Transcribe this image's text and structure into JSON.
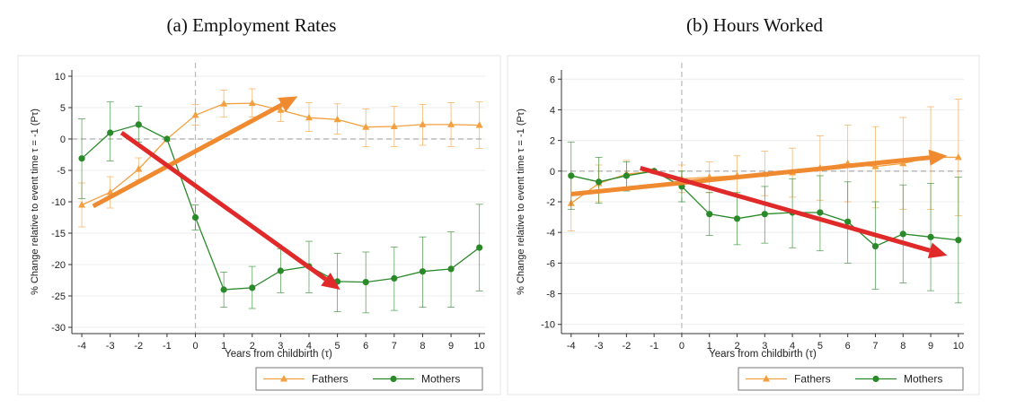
{
  "panels": [
    {
      "title": "(a) Employment Rates"
    },
    {
      "title": "(b) Hours Worked"
    }
  ],
  "chart_data": [
    {
      "type": "line",
      "title": "(a) Employment Rates",
      "xlabel": "Years from childbirth (τ)",
      "ylabel": "% Change relative to event time τ = -1 (Pτ)",
      "x": [
        -4,
        -3,
        -2,
        -1,
        0,
        1,
        2,
        3,
        4,
        5,
        6,
        7,
        8,
        9,
        10
      ],
      "xlim": [
        -4.35,
        10.2
      ],
      "ylim": [
        -31,
        11
      ],
      "yticks": [
        10,
        5,
        0,
        -5,
        -10,
        -15,
        -20,
        -25,
        -30
      ],
      "grid": true,
      "legend_position": "bottom-right",
      "series": [
        {
          "name": "Fathers",
          "color": "#f4a040",
          "marker": "triangle",
          "values": [
            -10.5,
            -8.5,
            -4.8,
            0,
            3.8,
            5.6,
            5.7,
            4.6,
            3.4,
            3.1,
            1.9,
            2.0,
            2.3,
            2.3,
            2.2
          ],
          "ci_low": [
            -14,
            -11,
            -6.5,
            0,
            2.2,
            3.5,
            3.5,
            2.8,
            1.2,
            0.8,
            -1.2,
            -1.2,
            -1.0,
            -1.2,
            -1.5
          ],
          "ci_high": [
            -7,
            -6,
            -3,
            0,
            5.5,
            7.8,
            8.0,
            6.5,
            5.8,
            5.6,
            4.8,
            5.2,
            5.5,
            5.8,
            5.9
          ]
        },
        {
          "name": "Mothers",
          "color": "#2a8a2a",
          "marker": "circle",
          "values": [
            -3.1,
            1.0,
            2.3,
            0,
            -12.5,
            -24.0,
            -23.7,
            -21.0,
            -20.3,
            -22.7,
            -22.8,
            -22.2,
            -21.1,
            -20.7,
            -17.3
          ],
          "ci_low": [
            -9.5,
            -3.5,
            -0.5,
            0,
            -14.5,
            -26.8,
            -27.0,
            -24.5,
            -24.5,
            -27.5,
            -27.7,
            -27.3,
            -26.8,
            -26.8,
            -24.2
          ],
          "ci_high": [
            3.2,
            5.9,
            5.2,
            0,
            -10.5,
            -21.2,
            -20.3,
            -17.5,
            -16.3,
            -18.2,
            -18.0,
            -17.2,
            -15.6,
            -14.8,
            -10.4
          ]
        }
      ],
      "arrows": [
        {
          "color": "#f08a30",
          "from": [
            -3.6,
            -10.7
          ],
          "to": [
            3.6,
            6.8
          ]
        },
        {
          "color": "#e02a2a",
          "from": [
            -2.6,
            1.0
          ],
          "to": [
            5.1,
            -24.0
          ]
        }
      ]
    },
    {
      "type": "line",
      "title": "(b) Hours Worked",
      "xlabel": "Years from childbirth (τ)",
      "ylabel": "% Change relative to event time τ = -1 (Pτ)",
      "x": [
        -4,
        -3,
        -2,
        -1,
        0,
        1,
        2,
        3,
        4,
        5,
        6,
        7,
        8,
        9,
        10
      ],
      "xlim": [
        -4.35,
        10.2
      ],
      "ylim": [
        -10.6,
        6.6
      ],
      "yticks": [
        6,
        4,
        2,
        0,
        -2,
        -4,
        -6,
        -8,
        -10
      ],
      "grid": true,
      "legend_position": "bottom-right",
      "series": [
        {
          "name": "Fathers",
          "color": "#f4a040",
          "marker": "triangle",
          "values": [
            -2.1,
            -0.8,
            -0.2,
            0,
            -0.5,
            -0.4,
            -0.3,
            -0.2,
            -0.1,
            0.2,
            0.5,
            0.3,
            0.5,
            0.9,
            0.9
          ],
          "ci_low": [
            -3.9,
            -2.0,
            -1.1,
            0,
            -1.4,
            -1.4,
            -1.6,
            -1.6,
            -1.7,
            -1.9,
            -2.0,
            -2.4,
            -2.5,
            -2.5,
            -2.9
          ],
          "ci_high": [
            -0.3,
            0.4,
            0.7,
            0,
            0.4,
            0.6,
            1.0,
            1.3,
            1.5,
            2.3,
            3.0,
            2.9,
            3.5,
            4.2,
            4.7
          ]
        },
        {
          "name": "Mothers",
          "color": "#2a8a2a",
          "marker": "circle",
          "values": [
            -0.3,
            -0.7,
            -0.3,
            0,
            -1.0,
            -2.8,
            -3.1,
            -2.8,
            -2.7,
            -2.7,
            -3.3,
            -4.9,
            -4.1,
            -4.3,
            -4.5
          ],
          "ci_low": [
            -2.5,
            -2.1,
            -1.3,
            0,
            -2.0,
            -4.2,
            -4.8,
            -4.7,
            -5.0,
            -5.2,
            -6.0,
            -7.7,
            -7.3,
            -7.8,
            -8.6
          ],
          "ci_high": [
            1.9,
            0.9,
            0.6,
            0,
            0.0,
            -1.4,
            -1.4,
            -1.0,
            -0.5,
            -0.3,
            -0.7,
            -2.0,
            -0.9,
            -0.8,
            -0.4
          ]
        }
      ],
      "arrows": [
        {
          "color": "#f08a30",
          "from": [
            -4.0,
            -1.5
          ],
          "to": [
            9.6,
            1.0
          ]
        },
        {
          "color": "#e02a2a",
          "from": [
            -1.5,
            0.2
          ],
          "to": [
            9.6,
            -5.5
          ]
        }
      ]
    }
  ]
}
